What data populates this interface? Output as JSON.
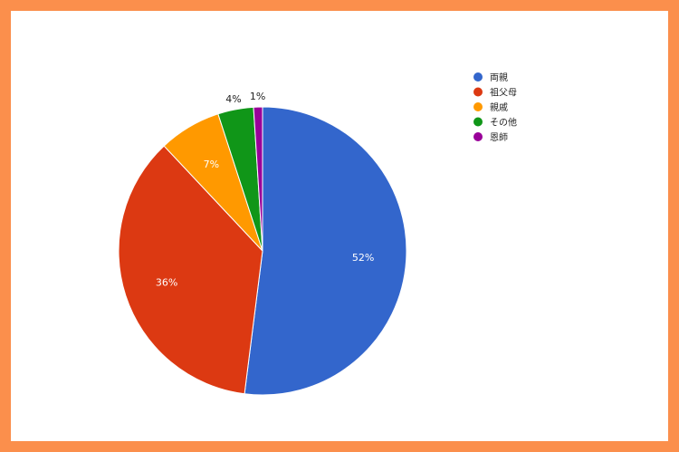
{
  "chart_data": {
    "type": "pie",
    "title": "",
    "categories": [
      "両親",
      "祖父母",
      "親戚",
      "その他",
      "恩師"
    ],
    "values": [
      52,
      36,
      7,
      4,
      1
    ],
    "labels": [
      "52%",
      "36%",
      "7%",
      "4%",
      "1%"
    ],
    "colors": [
      "#3366cc",
      "#dc3912",
      "#ff9900",
      "#109618",
      "#990099"
    ],
    "start": "top, clockwise",
    "legend": "right"
  },
  "frame_color": "#fb8f4c"
}
